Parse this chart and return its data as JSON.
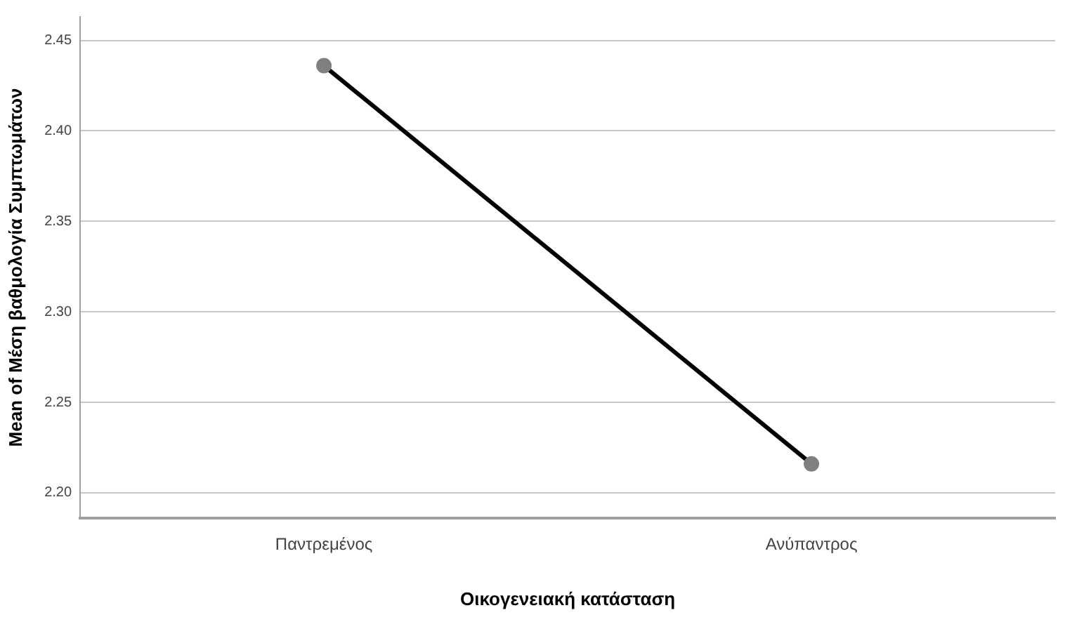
{
  "chart_data": {
    "type": "line",
    "xlabel": "Οικογενειακή κατάσταση",
    "ylabel": "Mean of Μέση βαθμολογία Συμπτωμάτων",
    "categories": [
      "Παντρεμένος",
      "Ανύπαντρος"
    ],
    "series": [
      {
        "color": "#000000",
        "values": [
          2.436,
          2.216
        ]
      }
    ],
    "ylim": [
      2.186,
      2.463
    ],
    "yticks": [
      {
        "value": 2.2,
        "label": "2.20"
      },
      {
        "value": 2.25,
        "label": "2.25"
      },
      {
        "value": 2.3,
        "label": "2.30"
      },
      {
        "value": 2.35,
        "label": "2.35"
      },
      {
        "value": 2.4,
        "label": "2.40"
      },
      {
        "value": 2.45,
        "label": "2.45"
      }
    ],
    "grid": "y",
    "legend": false,
    "marker": "circle",
    "line_style": "solid"
  }
}
